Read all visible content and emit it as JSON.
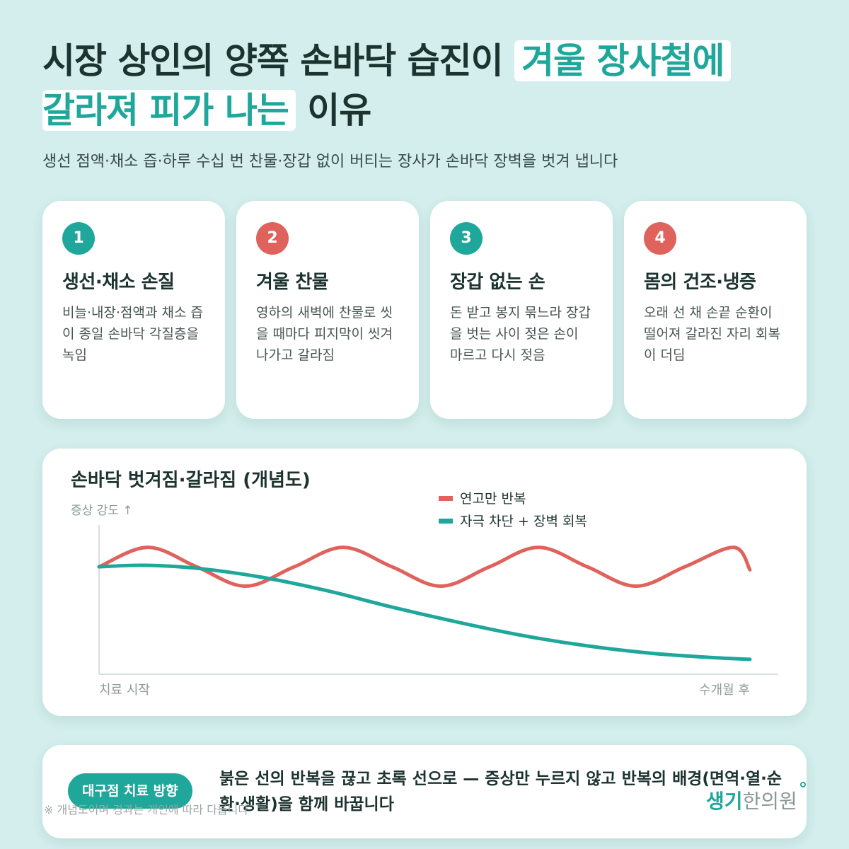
{
  "title": {
    "line1_plain": "시장 상인의 양쪽 손바닥 습진이",
    "line1_highlight": "겨울 장사철에",
    "line2_highlight": "갈라져 피가 나는",
    "line2_plain": "이유"
  },
  "subtitle": "생선 점액·채소 즙·하루 수십 번 찬물·장갑 없이 버티는 장사가 손바닥 장벽을 벗겨 냅니다",
  "cards": [
    {
      "number": "1",
      "title": "생선·채소 손질",
      "desc": "비늘·내장·점액과 채소 즙이 종일 손바닥 각질층을 녹임",
      "color": "#1ea79a"
    },
    {
      "number": "2",
      "title": "겨울 찬물",
      "desc": "영하의 새벽에 찬물로 씻을 때마다 피지막이 씻겨 나가고 갈라짐",
      "color": "#e0625c"
    },
    {
      "number": "3",
      "title": "장갑 없는 손",
      "desc": "돈 받고 봉지 묶느라 장갑을 벗는 사이 젖은 손이 마르고 다시 젖음",
      "color": "#1ea79a"
    },
    {
      "number": "4",
      "title": "몸의 건조·냉증",
      "desc": "오래 선 채 손끝 순환이 떨어져 갈라진 자리 회복이 더딤",
      "color": "#e0625c"
    }
  ],
  "chart_data": {
    "type": "line",
    "title": "손바닥 벗겨짐·갈라짐 (개념도)",
    "ylabel": "증상 강도 ↑",
    "x_start_label": "치료 시작",
    "x_end_label": "수개월 후",
    "xlim": [
      0,
      1
    ],
    "ylim": [
      0,
      1
    ],
    "grid": false,
    "legend_position": "top-right",
    "series": [
      {
        "name": "연고만 반복",
        "color": "#e0625c",
        "x": [
          0,
          0.075,
          0.15,
          0.225,
          0.3,
          0.375,
          0.45,
          0.525,
          0.6,
          0.675,
          0.75,
          0.825,
          0.9,
          0.975,
          1.0
        ],
        "y": [
          0.72,
          0.85,
          0.72,
          0.59,
          0.72,
          0.85,
          0.72,
          0.59,
          0.72,
          0.85,
          0.72,
          0.59,
          0.72,
          0.85,
          0.7
        ]
      },
      {
        "name": "자극 차단 + 장벽 회복",
        "color": "#1ea79a",
        "x": [
          0,
          0.07,
          0.15,
          0.25,
          0.35,
          0.45,
          0.55,
          0.65,
          0.75,
          0.85,
          0.95,
          1.0
        ],
        "y": [
          0.72,
          0.73,
          0.71,
          0.65,
          0.56,
          0.45,
          0.35,
          0.26,
          0.19,
          0.14,
          0.11,
          0.1
        ]
      }
    ]
  },
  "bottom": {
    "pill_label": "대구점 치료 방향",
    "text": "붉은 선의 반복을 끊고 초록 선으로 — 증상만 누르지 않고 반복의 배경(면역·열·순환·생활)을 함께 바꿉니다",
    "footnote": "※ 개념도이며 경과는 개인에 따라 다릅니다",
    "logo_accent": "생기",
    "logo_rest": "한의원"
  },
  "colors": {
    "background": "#d3eeec",
    "accent_green": "#1ea79a",
    "accent_red": "#e0625c"
  }
}
